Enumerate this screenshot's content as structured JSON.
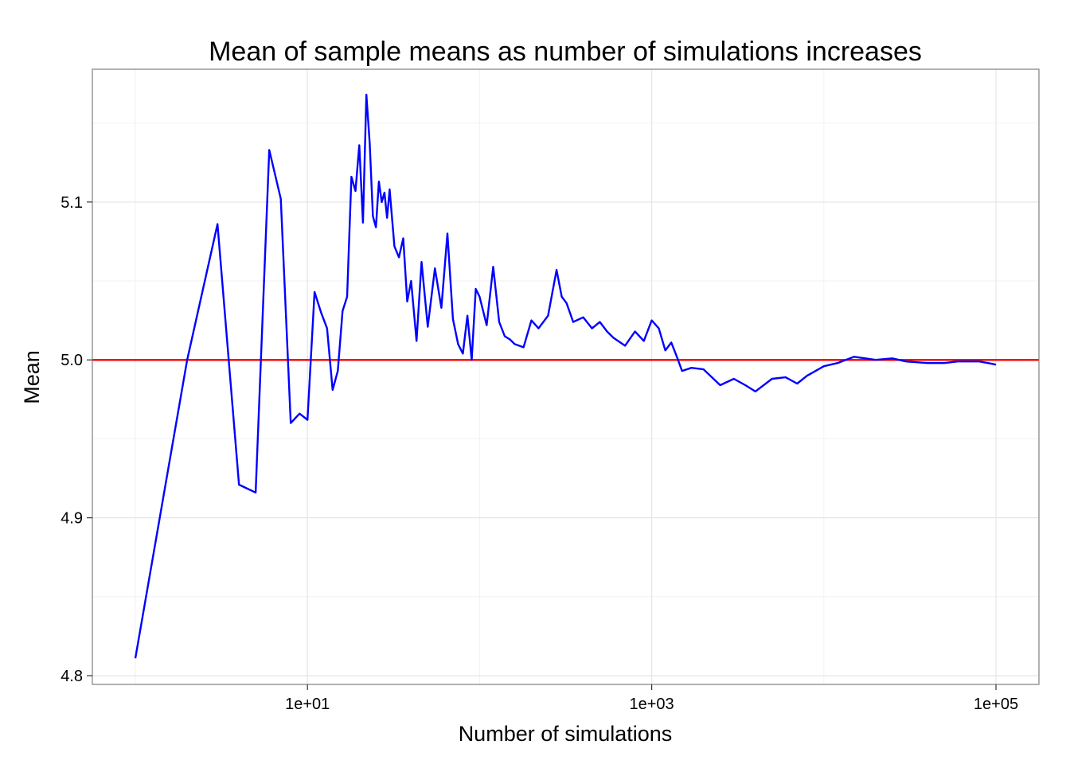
{
  "chart_data": {
    "type": "line",
    "title": "Mean of sample means as number of simulations increases",
    "xlabel": "Number of simulations",
    "ylabel": "Mean",
    "x_scale": "log10",
    "xlim": [
      1,
      100000
    ],
    "ylim": [
      4.8,
      5.17
    ],
    "x_ticks": [
      {
        "value": 10,
        "label": "1e+01"
      },
      {
        "value": 1000,
        "label": "1e+03"
      },
      {
        "value": 100000,
        "label": "1e+05"
      }
    ],
    "y_ticks": [
      {
        "value": 4.8,
        "label": "4.8"
      },
      {
        "value": 4.9,
        "label": "4.9"
      },
      {
        "value": 5.0,
        "label": "5.0"
      },
      {
        "value": 5.1,
        "label": "5.1"
      }
    ],
    "grid": true,
    "legend": "none",
    "hline": {
      "y": 5.0,
      "color": "#ff0000"
    },
    "series": [
      {
        "color": "#0000ff",
        "x": [
          1,
          2,
          3,
          4,
          5,
          6,
          7,
          8,
          9,
          10,
          11,
          12,
          13,
          14,
          15,
          16,
          17,
          18,
          19,
          20,
          21,
          22,
          23,
          24,
          25,
          26,
          27,
          28,
          29,
          30,
          32,
          34,
          36,
          38,
          40,
          43,
          46,
          50,
          55,
          60,
          65,
          70,
          75,
          80,
          85,
          90,
          95,
          100,
          110,
          120,
          130,
          140,
          150,
          160,
          180,
          200,
          220,
          250,
          280,
          300,
          320,
          350,
          400,
          450,
          500,
          550,
          600,
          700,
          800,
          900,
          1000,
          1100,
          1200,
          1300,
          1400,
          1500,
          1700,
          2000,
          2500,
          3000,
          3500,
          4000,
          5000,
          6000,
          7000,
          8000,
          10000,
          12000,
          15000,
          20000,
          25000,
          30000,
          40000,
          50000,
          60000,
          70000,
          80000,
          90000,
          100000
        ],
        "y": [
          4.811,
          5.0,
          5.086,
          4.921,
          4.916,
          5.133,
          5.102,
          4.96,
          4.966,
          4.962,
          5.043,
          5.03,
          5.02,
          4.981,
          4.993,
          5.031,
          5.04,
          5.116,
          5.107,
          5.136,
          5.087,
          5.168,
          5.137,
          5.091,
          5.084,
          5.113,
          5.1,
          5.106,
          5.09,
          5.108,
          5.072,
          5.065,
          5.077,
          5.037,
          5.05,
          5.012,
          5.062,
          5.021,
          5.058,
          5.033,
          5.08,
          5.026,
          5.01,
          5.004,
          5.028,
          5.0,
          5.045,
          5.04,
          5.022,
          5.059,
          5.024,
          5.015,
          5.013,
          5.01,
          5.008,
          5.025,
          5.02,
          5.028,
          5.057,
          5.04,
          5.036,
          5.024,
          5.027,
          5.02,
          5.024,
          5.018,
          5.014,
          5.009,
          5.018,
          5.012,
          5.025,
          5.02,
          5.006,
          5.011,
          5.002,
          4.993,
          4.995,
          4.994,
          4.984,
          4.988,
          4.984,
          4.98,
          4.988,
          4.989,
          4.985,
          4.99,
          4.996,
          4.998,
          5.002,
          5.0,
          5.001,
          4.999,
          4.998,
          4.998,
          4.999,
          4.999,
          4.999,
          4.998,
          4.997
        ]
      }
    ]
  }
}
